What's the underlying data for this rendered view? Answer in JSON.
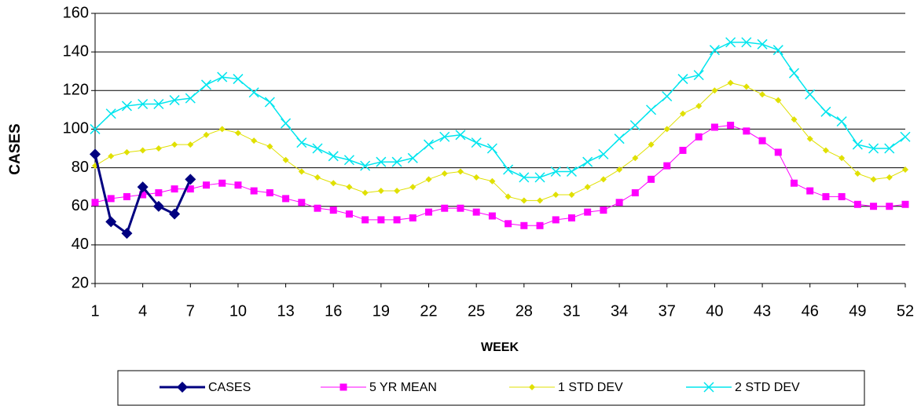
{
  "chart_data": {
    "type": "line",
    "x_label": "WEEK",
    "y_label": "CASES",
    "x": [
      1,
      2,
      3,
      4,
      5,
      6,
      7,
      8,
      9,
      10,
      11,
      12,
      13,
      14,
      15,
      16,
      17,
      18,
      19,
      20,
      21,
      22,
      23,
      24,
      25,
      26,
      27,
      28,
      29,
      30,
      31,
      32,
      33,
      34,
      35,
      36,
      37,
      38,
      39,
      40,
      41,
      42,
      43,
      44,
      45,
      46,
      47,
      48,
      49,
      50,
      51,
      52
    ],
    "xlim": [
      1,
      52
    ],
    "xticks": [
      1,
      4,
      7,
      10,
      13,
      16,
      19,
      22,
      25,
      28,
      31,
      34,
      37,
      40,
      43,
      46,
      49,
      52
    ],
    "ylim": [
      20,
      160
    ],
    "yticks": [
      20,
      40,
      60,
      80,
      100,
      120,
      140,
      160
    ],
    "grid": true,
    "series": [
      {
        "name": "CASES",
        "color": "#000080",
        "marker": "diamond",
        "line_width": 3,
        "values": [
          87,
          52,
          46,
          70,
          60,
          56,
          74,
          null,
          null,
          null,
          null,
          null,
          null,
          null,
          null,
          null,
          null,
          null,
          null,
          null,
          null,
          null,
          null,
          null,
          null,
          null,
          null,
          null,
          null,
          null,
          null,
          null,
          null,
          null,
          null,
          null,
          null,
          null,
          null,
          null,
          null,
          null,
          null,
          null,
          null,
          null,
          null,
          null,
          null,
          null,
          null,
          null
        ]
      },
      {
        "name": "5 YR MEAN",
        "color": "#ff00ff",
        "marker": "square",
        "line_width": 1,
        "values": [
          62,
          64,
          65,
          66,
          67,
          69,
          69,
          71,
          72,
          71,
          68,
          67,
          64,
          62,
          59,
          58,
          56,
          53,
          53,
          53,
          54,
          57,
          59,
          59,
          57,
          55,
          51,
          50,
          50,
          53,
          54,
          57,
          58,
          62,
          67,
          74,
          81,
          89,
          96,
          101,
          102,
          99,
          94,
          88,
          72,
          68,
          65,
          65,
          61,
          60,
          60,
          61
        ]
      },
      {
        "name": "1 STD DEV",
        "color": "#e0e000",
        "marker": "dot",
        "line_width": 1,
        "values": [
          81,
          86,
          88,
          89,
          90,
          92,
          92,
          97,
          100,
          98,
          94,
          91,
          84,
          78,
          75,
          72,
          70,
          67,
          68,
          68,
          70,
          74,
          77,
          78,
          75,
          73,
          65,
          63,
          63,
          66,
          66,
          70,
          74,
          79,
          85,
          92,
          100,
          108,
          112,
          120,
          124,
          122,
          118,
          115,
          105,
          95,
          89,
          85,
          77,
          74,
          75,
          79
        ]
      },
      {
        "name": "2 STD DEV",
        "color": "#00e5ee",
        "marker": "x",
        "line_width": 1.5,
        "values": [
          100,
          108,
          112,
          113,
          113,
          115,
          116,
          123,
          127,
          126,
          119,
          114,
          103,
          93,
          90,
          86,
          84,
          81,
          83,
          83,
          85,
          92,
          96,
          97,
          93,
          90,
          79,
          75,
          75,
          78,
          78,
          83,
          87,
          95,
          102,
          110,
          117,
          126,
          128,
          141,
          145,
          145,
          144,
          141,
          129,
          118,
          109,
          104,
          92,
          90,
          90,
          96
        ]
      }
    ]
  }
}
